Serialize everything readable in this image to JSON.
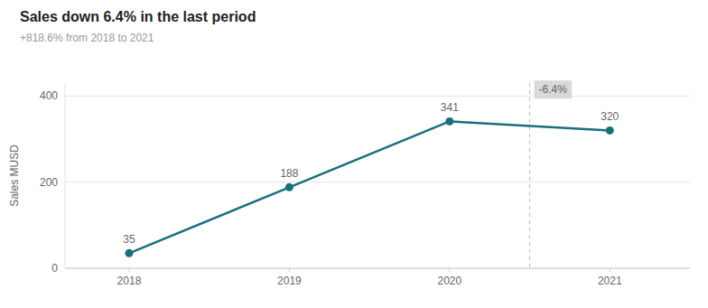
{
  "chart_data": {
    "type": "line",
    "title": "Sales down 6.4% in the last period",
    "subtitle": "+818.6% from 2018 to 2021",
    "y_label": "Sales MUSD",
    "x": [
      2018,
      2019,
      2020,
      2021
    ],
    "values": [
      35,
      188,
      341,
      320
    ],
    "color": "#1a6e7e",
    "marker": "circle",
    "xlim": [
      2017.6,
      2021.5
    ],
    "xticks": [
      2018,
      2019,
      2020,
      2021
    ],
    "ylim": [
      0,
      430
    ],
    "yticks": [
      0,
      200,
      400
    ],
    "grid": true,
    "data_labels": true,
    "vlines": [
      {
        "x": 2020.5,
        "line_style": "dashed"
      }
    ],
    "annotations": [
      {
        "text": "-6.4%",
        "x": 2020.5,
        "y": 415
      }
    ]
  }
}
